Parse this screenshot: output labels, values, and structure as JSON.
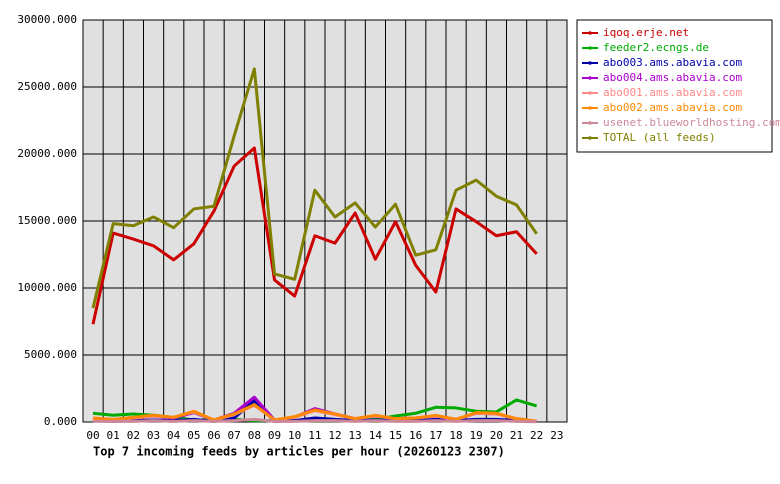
{
  "chart_data": {
    "type": "line",
    "title": "Top 7 incoming feeds by articles per hour (20260123 2307)",
    "categories": [
      "00",
      "01",
      "02",
      "03",
      "04",
      "05",
      "06",
      "07",
      "08",
      "09",
      "10",
      "11",
      "12",
      "13",
      "14",
      "15",
      "16",
      "17",
      "18",
      "19",
      "20",
      "21",
      "22",
      "23"
    ],
    "ylim": [
      0,
      30000
    ],
    "yticks": [
      {
        "value": 0,
        "label": "0.000"
      },
      {
        "value": 5000,
        "label": "5000.000"
      },
      {
        "value": 10000,
        "label": "10000.000"
      },
      {
        "value": 15000,
        "label": "15000.000"
      },
      {
        "value": 20000,
        "label": "20000.000"
      },
      {
        "value": 25000,
        "label": "25000.000"
      },
      {
        "value": 30000,
        "label": "30000.000"
      }
    ],
    "grid": true,
    "legend": "right",
    "series": [
      {
        "name": "iqoq.erje.net",
        "color": "#cc0000",
        "values": [
          7300,
          14100,
          13650,
          13150,
          12100,
          13300,
          15750,
          19100,
          20450,
          10600,
          9400,
          13900,
          13350,
          15600,
          12150,
          14950,
          11700,
          9700,
          15900,
          14950,
          13900,
          14200,
          12550,
          null
        ]
      },
      {
        "name": "feeder2.ecngs.de",
        "color": "#00aa00",
        "values": [
          650,
          500,
          600,
          500,
          350,
          150,
          150,
          200,
          100,
          100,
          100,
          100,
          100,
          150,
          200,
          450,
          650,
          1100,
          1050,
          800,
          750,
          1650,
          1200,
          null
        ]
      },
      {
        "name": "abo003.ams.abavia.com",
        "color": "#0000aa",
        "values": [
          100,
          50,
          100,
          150,
          100,
          200,
          50,
          300,
          1600,
          50,
          100,
          300,
          200,
          100,
          150,
          100,
          100,
          200,
          100,
          200,
          200,
          100,
          50,
          null
        ]
      },
      {
        "name": "abo004.ams.abavia.com",
        "color": "#aa00cc",
        "values": [
          200,
          150,
          300,
          450,
          300,
          700,
          150,
          650,
          1850,
          150,
          350,
          1000,
          600,
          250,
          450,
          250,
          300,
          450,
          200,
          650,
          600,
          250,
          50,
          null
        ]
      },
      {
        "name": "abo001.ams.abavia.com",
        "color": "#ff8888",
        "values": [
          250,
          150,
          300,
          450,
          350,
          750,
          150,
          550,
          1250,
          150,
          350,
          850,
          550,
          250,
          450,
          250,
          300,
          450,
          200,
          650,
          600,
          250,
          50,
          null
        ]
      },
      {
        "name": "abo002.ams.abavia.com",
        "color": "#ff8800",
        "values": [
          300,
          200,
          350,
          500,
          350,
          800,
          150,
          600,
          1300,
          150,
          400,
          900,
          600,
          250,
          500,
          250,
          300,
          500,
          200,
          700,
          650,
          250,
          50,
          null
        ]
      },
      {
        "name": "usenet.blueworldhosting.com",
        "color": "#cc8899",
        "values": [
          50,
          50,
          50,
          100,
          50,
          100,
          50,
          100,
          200,
          50,
          50,
          100,
          100,
          50,
          100,
          50,
          50,
          100,
          50,
          100,
          100,
          50,
          20,
          null
        ]
      },
      {
        "name": "TOTAL (all feeds)",
        "color": "#808000",
        "values": [
          8500,
          14800,
          14650,
          15300,
          14500,
          15900,
          16100,
          21350,
          26350,
          11050,
          10650,
          17300,
          15300,
          16350,
          14550,
          16250,
          12450,
          12850,
          17300,
          18050,
          16850,
          16200,
          14050,
          null
        ]
      }
    ]
  }
}
